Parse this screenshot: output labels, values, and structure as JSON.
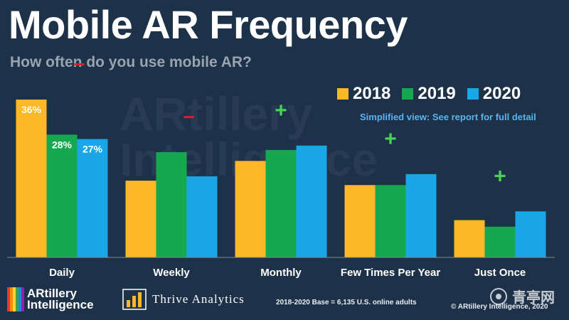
{
  "header": {
    "title": "Mobile AR Frequency",
    "subtitle": "How often do you use mobile AR?"
  },
  "watermark": {
    "line1": "ARtillery",
    "line2": "Intelligence"
  },
  "note": "Simplified view: See report for full detail",
  "footer": {
    "base": "2018-2020 Base = 6,135 U.S. online adults",
    "copyright": "© ARtillery Intelligence, 2020"
  },
  "logos": {
    "artillery_line1": "ARtillery",
    "artillery_line2": "Intelligence",
    "thrive": "Thrive Analytics",
    "site": "青亭网"
  },
  "colors": {
    "2018": "#fdb827",
    "2019": "#16a84f",
    "2020": "#19a7e8",
    "background": "#1d3149",
    "plus": "#49d15a",
    "minus": "#d61f2b"
  },
  "chart_data": {
    "type": "bar",
    "categories": [
      "Daily",
      "Weekly",
      "Monthly",
      "Few Times Per Year",
      "Just Once"
    ],
    "series": [
      {
        "name": "2018",
        "values": [
          36,
          17.5,
          22,
          16.5,
          8.5
        ]
      },
      {
        "name": "2019",
        "values": [
          28,
          24,
          24.5,
          16.5,
          7
        ]
      },
      {
        "name": "2020",
        "values": [
          27,
          18.5,
          25.5,
          19,
          10.5
        ]
      }
    ],
    "data_labels": [
      [
        "36%",
        "",
        "",
        "",
        ""
      ],
      [
        "28%",
        "",
        "",
        "",
        ""
      ],
      [
        "27%",
        "",
        "",
        "",
        ""
      ]
    ],
    "trend_markers": [
      "−",
      "−",
      "+",
      "+",
      "+"
    ],
    "ylim": [
      0,
      36
    ],
    "grid": false,
    "legend": "top-right",
    "title": "",
    "xlabel": "",
    "ylabel": ""
  }
}
